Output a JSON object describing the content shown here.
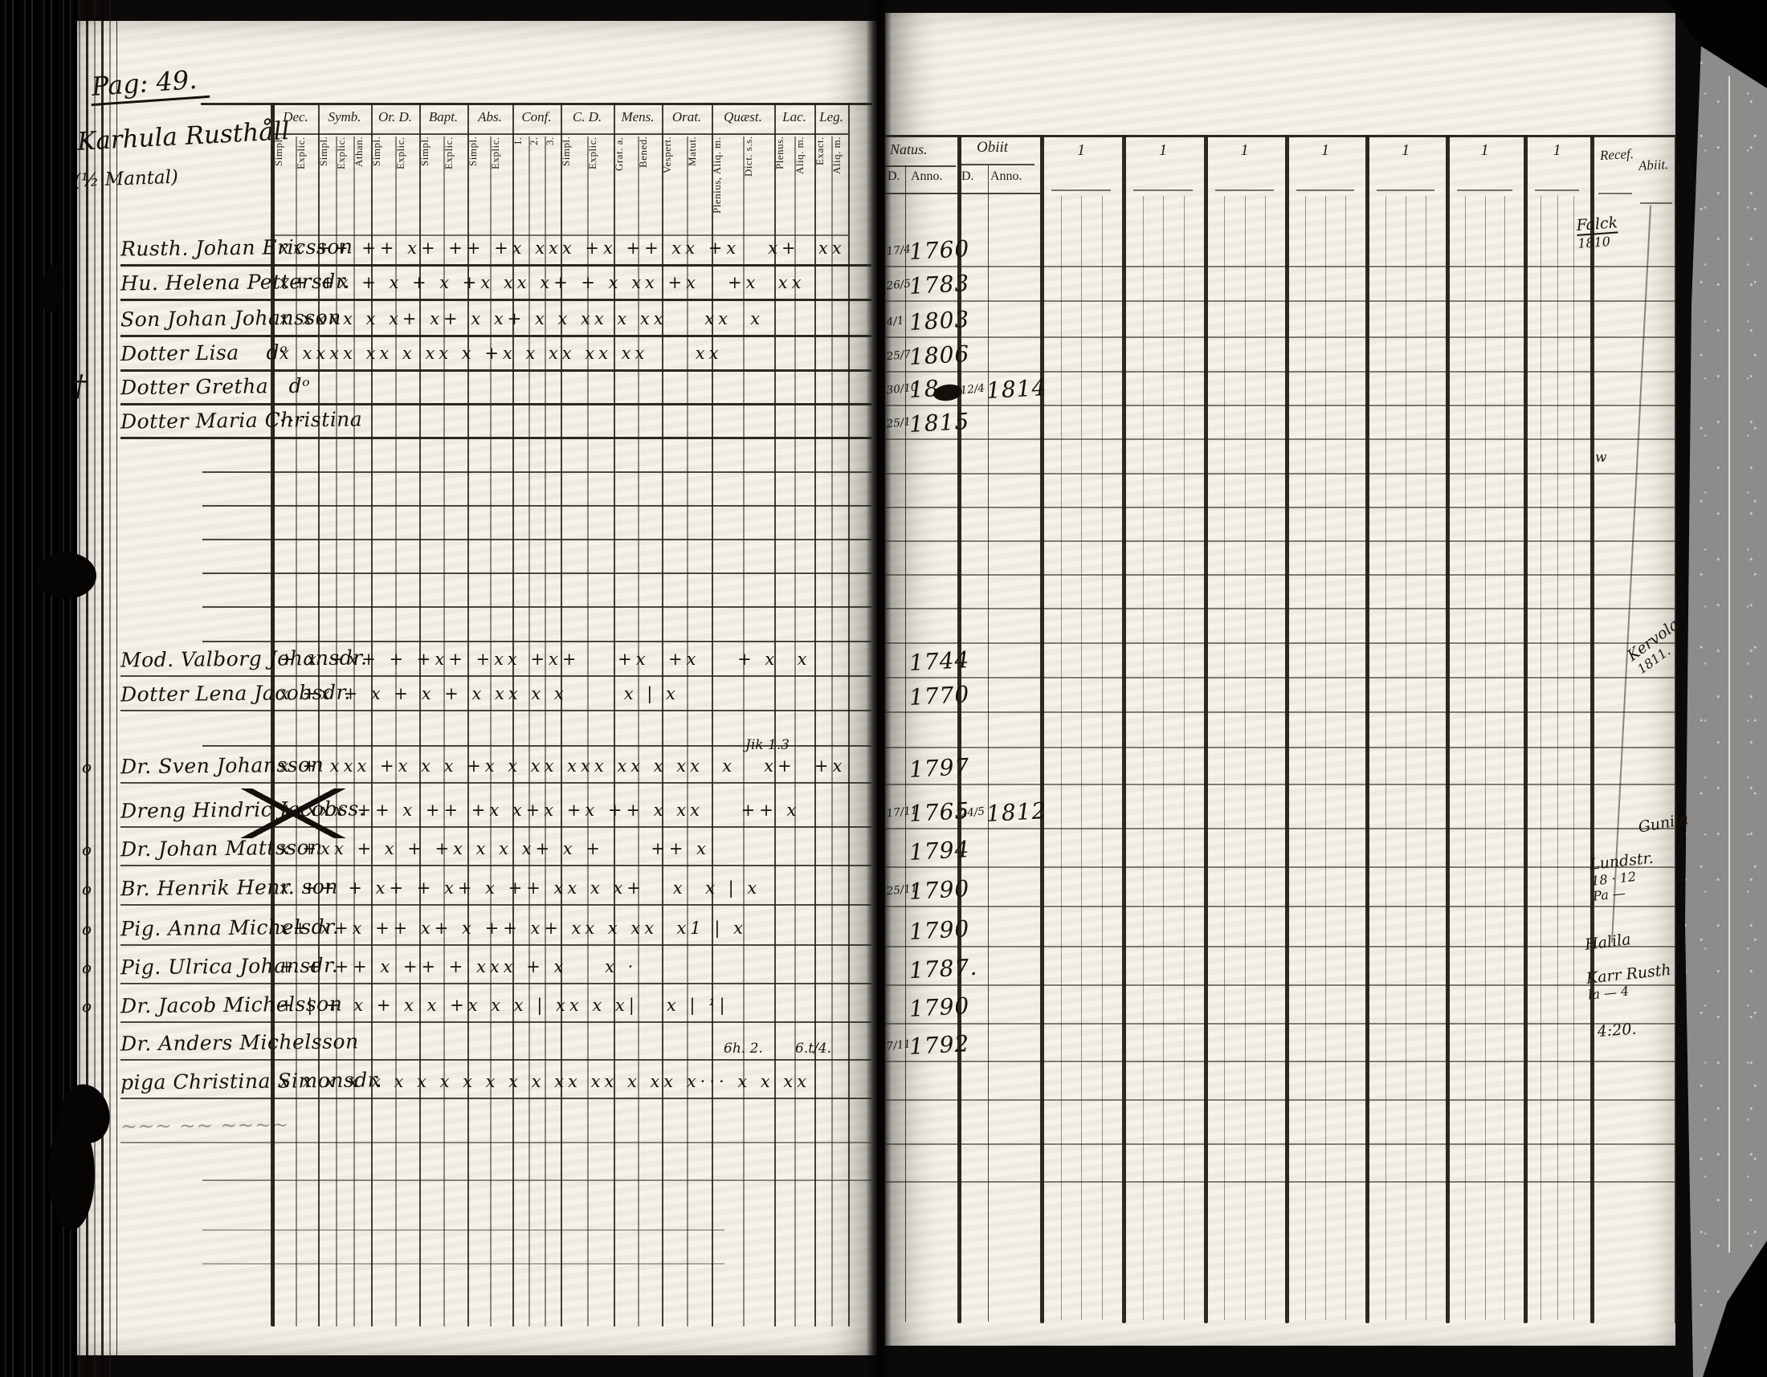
{
  "left_page": {
    "page_number": "Pag: 49.",
    "estate_name": "Karhula Rusthåll",
    "estate_note": "(½ Mantal)",
    "column_groups": [
      {
        "label": "Dec.",
        "subs": [
          "Simpl.",
          "Explic."
        ]
      },
      {
        "label": "Symb.",
        "subs": [
          "Simpl.",
          "Explic.",
          "Athan."
        ]
      },
      {
        "label": "Or. D.",
        "subs": [
          "Simpl.",
          "Explic."
        ]
      },
      {
        "label": "Bapt.",
        "subs": [
          "Simpl.",
          "Explic."
        ]
      },
      {
        "label": "Abs.",
        "subs": [
          "Simpl.",
          "Explic."
        ]
      },
      {
        "label": "Conf.",
        "subs": [
          "1.",
          "2.",
          "3."
        ]
      },
      {
        "label": "C. D.",
        "subs": [
          "Simpl.",
          "Explic."
        ]
      },
      {
        "label": "Mens.",
        "subs": [
          "Grat. a.",
          "Bened."
        ]
      },
      {
        "label": "Orat.",
        "subs": [
          "Vespert.",
          "Matut."
        ]
      },
      {
        "label": "Quæst.",
        "subs": [
          "Plenius, Aliq. m.",
          "Dict. s.s."
        ]
      },
      {
        "label": "Lac.",
        "subs": [
          "Plenus.",
          "Aliq. m."
        ]
      },
      {
        "label": "Leg.",
        "subs": [
          "Exact.",
          "Aliq. m."
        ]
      }
    ]
  },
  "right_page": {
    "natus": {
      "label": "Natus.",
      "day": "D.",
      "anno": "Anno."
    },
    "obiit": {
      "label": "Obiit",
      "day": "D.",
      "anno": "Anno."
    },
    "numbered_columns": [
      "1",
      "1",
      "1",
      "1",
      "1",
      "1",
      "1"
    ],
    "recess_label": "Recef.",
    "abiit_label": "Abiit."
  },
  "rows": [
    {
      "name": "Rusth. Johan Ericsson",
      "marks": "xx ++ ++ x+ ++ +x xxx +x ++ xx +x   x+  xx",
      "natus_day": "17/4",
      "natus_year": "1760"
    },
    {
      "name": "Hu. Helena Pettersdr.",
      "marks": "x+ +x + x + x +x xx x+ + x xx +x   +x  xx",
      "natus_day": "26/5",
      "natus_year": "1783"
    },
    {
      "name": "Son Johan Johansson",
      "marks": "x xxxx x x+ x+ x x+ x x xx x xx    xx  x",
      "natus_day": "4/1",
      "natus_year": "1803"
    },
    {
      "name": "Dotter Lisa    dᵒ",
      "marks": "x xxxx xx x xx x +x x xx xx xx     xx",
      "natus_day": "25/7",
      "natus_year": "1806"
    },
    {
      "prefix": "†",
      "name": "Dotter Gretha   dᵒ",
      "marks": "",
      "natus_day": "30/10",
      "natus_year": "18",
      "blot": true,
      "obiit_day": "12/4",
      "obiit_year": "1814"
    },
    {
      "name": "Dotter Maria Christina",
      "marks": "···",
      "natus_day": "25/1",
      "natus_year": "1815"
    },
    {},
    {},
    {},
    {},
    {},
    {},
    {
      "name": "Mod. Valborg Johansdr.",
      "marks": "+ x +x+ + +x+ +xx +x+    +x  +x    + x  x",
      "natus_year": "1744"
    },
    {
      "name": "Dotter Lena Jacobsdr.",
      "marks": "x +x + x + x + x xx x x      x | x",
      "natus_year": "1770"
    },
    {},
    {
      "prefix": "o",
      "name": "Dr. Sven Johansson",
      "marks": "x + xxx +x x x +x x xx xxx xx x xx  x   x+  +x",
      "natus_year": "1797"
    },
    {
      "name": "Dreng Hindric Jacobss.",
      "struck": true,
      "marks": "+ xxx ++ x ++ +x x+x +x ++ x xx    ++ x",
      "natus_day": "17/11",
      "natus_year": "1765",
      "obiit_day": "24/5",
      "obiit_year": "1812"
    },
    {
      "prefix": "o",
      "name": "Dr. Johan Mattsson",
      "marks": "x +xx + x + +x x x x+ x +     ++ x",
      "natus_year": "1794"
    },
    {
      "prefix": "o",
      "name": "Br. Henrik Henr. son",
      "marks": "x ++ + x+ + x+ x ++ xx x x+   x  x | x",
      "natus_day": "25/11",
      "natus_year": "1790"
    },
    {
      "prefix": "o",
      "name": "Pig. Anna Michelsdr.",
      "marks": "x+ x+x ++ x+ x ++ x+ xx x xx  x1 | x",
      "natus_year": "1790"
    },
    {
      "prefix": "o",
      "name": "Pig. Ulrica Johansdr.",
      "marks": "+ + ++ x ++ + xxx + x    x ·",
      "natus_year": "1787."
    },
    {
      "prefix": "o",
      "name": "Dr. Jacob Michelsson",
      "marks": "+ | + x + x x +x x x | xx x x|   x | ¹|",
      "natus_year": "1790"
    },
    {
      "name": "Dr. Anders Michelsson",
      "marks": "",
      "natus_day": "7/11",
      "natus_year": "1792"
    },
    {
      "name": "piga Christina Simonsdr.",
      "marks": "x x x x x x x x x x x x xx xx x xx x··· x x xx"
    },
    {
      "name": "∼∼∼ ∼∼ ∼∼∼∼",
      "faint": true
    },
    {},
    {},
    {}
  ],
  "annotations": [
    {
      "text": "Jik 1.3"
    },
    {
      "text": "6h. 2."
    },
    {
      "text": "6.t/4."
    },
    {
      "text": "w"
    }
  ],
  "margin_notes": [
    {
      "lines": [
        "Falck",
        "1810"
      ]
    },
    {
      "lines": [
        "Kervola",
        "1811."
      ]
    },
    {
      "lines": [
        "Gunila"
      ]
    },
    {
      "lines": [
        "Lundstr.",
        "18 · 12",
        "Pa —"
      ]
    },
    {
      "lines": [
        "Halila"
      ]
    },
    {
      "lines": [
        "Karr Rusth",
        "la — 4"
      ]
    },
    {
      "lines": [
        "4:20."
      ]
    }
  ]
}
